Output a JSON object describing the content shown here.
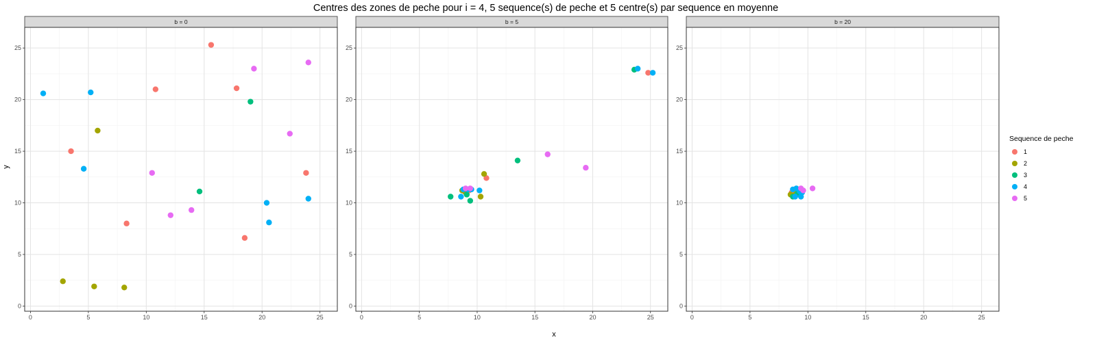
{
  "chart_data": {
    "type": "scatter",
    "title": "Centres des zones de peche pour i = 4, 5 sequence(s) de peche et 5 centre(s) par sequence en moyenne",
    "xlabel": "x",
    "ylabel": "y",
    "xlim": [
      -0.5,
      26.5
    ],
    "ylim": [
      -0.5,
      27
    ],
    "x_ticks": [
      0,
      5,
      10,
      15,
      20,
      25
    ],
    "y_ticks": [
      0,
      5,
      10,
      15,
      20,
      25
    ],
    "grid": true,
    "legend": {
      "title": "Sequence de peche",
      "placement": "right",
      "entries": [
        {
          "label": "1",
          "color": "#F8766D"
        },
        {
          "label": "2",
          "color": "#A3A500"
        },
        {
          "label": "3",
          "color": "#00BF7D"
        },
        {
          "label": "4",
          "color": "#00B0F6"
        },
        {
          "label": "5",
          "color": "#E76BF3"
        }
      ]
    },
    "panels": [
      {
        "label": "b = 0",
        "series": [
          {
            "name": "1",
            "points": [
              [
                15.6,
                25.3
              ],
              [
                10.8,
                21.0
              ],
              [
                17.8,
                21.1
              ],
              [
                3.5,
                15.0
              ],
              [
                23.8,
                12.9
              ],
              [
                8.3,
                8.0
              ],
              [
                18.5,
                6.6
              ]
            ]
          },
          {
            "name": "2",
            "points": [
              [
                5.8,
                17.0
              ],
              [
                2.8,
                2.4
              ],
              [
                5.5,
                1.9
              ],
              [
                8.1,
                1.8
              ]
            ]
          },
          {
            "name": "3",
            "points": [
              [
                19.0,
                19.8
              ],
              [
                14.6,
                11.1
              ]
            ]
          },
          {
            "name": "4",
            "points": [
              [
                1.1,
                20.6
              ],
              [
                5.2,
                20.7
              ],
              [
                4.6,
                13.3
              ],
              [
                20.4,
                10.0
              ],
              [
                24.0,
                10.4
              ],
              [
                20.6,
                8.1
              ]
            ]
          },
          {
            "name": "5",
            "points": [
              [
                19.3,
                23.0
              ],
              [
                24.0,
                23.6
              ],
              [
                22.4,
                16.7
              ],
              [
                10.5,
                12.9
              ],
              [
                13.9,
                9.3
              ],
              [
                12.1,
                8.8
              ]
            ]
          }
        ]
      },
      {
        "label": "b = 5",
        "series": [
          {
            "name": "1",
            "points": [
              [
                24.8,
                22.6
              ],
              [
                10.8,
                12.4
              ],
              [
                8.9,
                11.1
              ],
              [
                9.3,
                11.2
              ]
            ]
          },
          {
            "name": "2",
            "points": [
              [
                10.6,
                12.8
              ],
              [
                10.3,
                10.6
              ],
              [
                9.0,
                11.0
              ],
              [
                8.7,
                11.2
              ]
            ]
          },
          {
            "name": "3",
            "points": [
              [
                23.6,
                22.9
              ],
              [
                13.5,
                14.1
              ],
              [
                7.7,
                10.6
              ],
              [
                9.4,
                10.2
              ],
              [
                9.1,
                10.8
              ]
            ]
          },
          {
            "name": "4",
            "points": [
              [
                23.9,
                23.0
              ],
              [
                25.2,
                22.6
              ],
              [
                8.6,
                10.6
              ],
              [
                10.2,
                11.2
              ],
              [
                9.5,
                11.3
              ],
              [
                8.8,
                11.3
              ],
              [
                9.2,
                11.3
              ]
            ]
          },
          {
            "name": "5",
            "points": [
              [
                16.1,
                14.7
              ],
              [
                19.4,
                13.4
              ],
              [
                9.4,
                11.4
              ],
              [
                9.0,
                11.4
              ]
            ]
          }
        ]
      },
      {
        "label": "b = 20",
        "series": [
          {
            "name": "1",
            "points": [
              [
                8.6,
                11.0
              ],
              [
                8.9,
                10.9
              ],
              [
                9.2,
                11.1
              ]
            ]
          },
          {
            "name": "2",
            "points": [
              [
                8.5,
                10.8
              ],
              [
                8.8,
                10.7
              ],
              [
                9.0,
                11.0
              ]
            ]
          },
          {
            "name": "3",
            "points": [
              [
                8.7,
                10.6
              ],
              [
                9.1,
                10.9
              ],
              [
                9.3,
                10.8
              ]
            ]
          },
          {
            "name": "4",
            "points": [
              [
                8.7,
                11.3
              ],
              [
                9.0,
                11.4
              ],
              [
                9.3,
                11.1
              ],
              [
                9.4,
                10.6
              ],
              [
                8.9,
                10.6
              ],
              [
                9.5,
                11.0
              ]
            ]
          },
          {
            "name": "5",
            "points": [
              [
                10.4,
                11.4
              ],
              [
                9.4,
                11.4
              ],
              [
                9.6,
                11.2
              ]
            ]
          }
        ]
      }
    ]
  }
}
